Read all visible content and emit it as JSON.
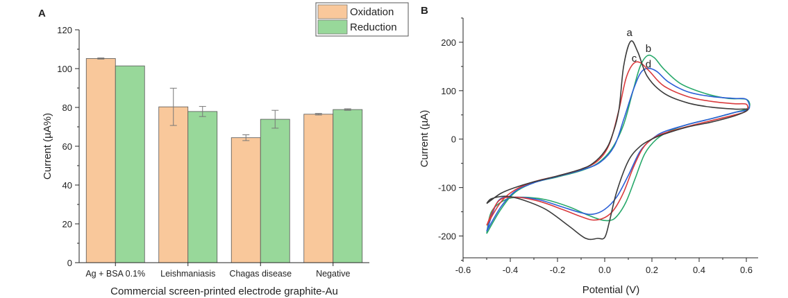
{
  "colors": {
    "oxidation": "#f9c89b",
    "reduction": "#98d89a",
    "curve_a": "#3a3a3a",
    "curve_b": "#27a86a",
    "curve_c": "#d9393c",
    "curve_d": "#2c5fd6"
  },
  "chart_data": [
    {
      "panel": "A",
      "type": "bar",
      "categories": [
        "Ag + BSA 0.1%",
        "Leishmaniasis",
        "Chagas disease",
        "Negative"
      ],
      "series": [
        {
          "name": "Oxidation",
          "values": [
            105.2,
            80.3,
            64.4,
            76.5
          ],
          "errors": [
            0.3,
            9.6,
            1.5,
            0.4
          ]
        },
        {
          "name": "Reduction",
          "values": [
            101.4,
            77.9,
            73.9,
            78.9
          ],
          "errors": [
            0,
            2.6,
            4.6,
            0.4
          ]
        }
      ],
      "xlabel": "Commercial screen-printed electrode graphite-Au",
      "ylabel": "Current (µA%)",
      "ylim": [
        0,
        120
      ],
      "yticks": [
        "0",
        "20",
        "40",
        "60",
        "80",
        "100",
        "120"
      ],
      "legend": "top-right"
    },
    {
      "panel": "B",
      "type": "line",
      "xlabel": "Potential (V)",
      "ylabel": "Current (µA)",
      "xlim": [
        -0.6,
        0.65
      ],
      "ylim": [
        -245,
        250
      ],
      "xticks": [
        "-0.6",
        "-0.4",
        "-0.2",
        "0.0",
        "0.2",
        "0.4",
        "0.6"
      ],
      "yticks": [
        "-200",
        "-100",
        "0",
        "100",
        "200"
      ],
      "series": [
        {
          "name": "a",
          "x": [
            -0.5,
            -0.44,
            -0.38,
            -0.3,
            -0.2,
            -0.1,
            -0.05,
            0.0,
            0.03,
            0.06,
            0.08,
            0.11,
            0.14,
            0.18,
            0.25,
            0.35,
            0.45,
            0.55,
            0.6,
            0.6,
            0.55,
            0.45,
            0.35,
            0.25,
            0.2,
            0.15,
            0.1,
            0.05,
            0.02,
            0.0,
            -0.03,
            -0.08,
            -0.15,
            -0.25,
            -0.35,
            -0.42,
            -0.48,
            -0.5
          ],
          "y": [
            -133,
            -112,
            -100,
            -88,
            -76,
            -62,
            -50,
            -25,
            5,
            60,
            150,
            202,
            180,
            130,
            95,
            75,
            66,
            62,
            62,
            58,
            48,
            35,
            25,
            10,
            0,
            -15,
            -45,
            -110,
            -170,
            -203,
            -205,
            -205,
            -180,
            -145,
            -125,
            -118,
            -123,
            -133
          ]
        },
        {
          "name": "b",
          "x": [
            -0.5,
            -0.44,
            -0.38,
            -0.3,
            -0.2,
            -0.1,
            -0.03,
            0.03,
            0.08,
            0.12,
            0.15,
            0.18,
            0.21,
            0.25,
            0.32,
            0.42,
            0.52,
            0.6,
            0.61,
            0.55,
            0.45,
            0.35,
            0.28,
            0.22,
            0.17,
            0.13,
            0.09,
            0.05,
            0.02,
            -0.02,
            -0.08,
            -0.15,
            -0.25,
            -0.35,
            -0.42,
            -0.48,
            -0.5
          ],
          "y": [
            -195,
            -145,
            -110,
            -90,
            -78,
            -65,
            -50,
            -20,
            30,
            100,
            150,
            172,
            168,
            145,
            115,
            95,
            84,
            82,
            65,
            55,
            42,
            30,
            18,
            0,
            -30,
            -80,
            -130,
            -160,
            -168,
            -166,
            -155,
            -140,
            -125,
            -120,
            -125,
            -150,
            -195
          ]
        },
        {
          "name": "c",
          "x": [
            -0.5,
            -0.44,
            -0.38,
            -0.3,
            -0.2,
            -0.1,
            -0.03,
            0.02,
            0.06,
            0.09,
            0.12,
            0.15,
            0.19,
            0.25,
            0.35,
            0.45,
            0.55,
            0.6,
            0.6,
            0.55,
            0.45,
            0.35,
            0.25,
            0.2,
            0.16,
            0.12,
            0.08,
            0.04,
            0.0,
            -0.05,
            -0.1,
            -0.18,
            -0.28,
            -0.38,
            -0.45,
            -0.5
          ],
          "y": [
            -178,
            -130,
            -105,
            -88,
            -76,
            -62,
            -45,
            -10,
            60,
            125,
            155,
            158,
            140,
            110,
            88,
            78,
            73,
            72,
            58,
            50,
            38,
            26,
            12,
            0,
            -20,
            -60,
            -110,
            -145,
            -162,
            -167,
            -160,
            -145,
            -128,
            -120,
            -128,
            -178
          ]
        },
        {
          "name": "d",
          "x": [
            -0.5,
            -0.44,
            -0.38,
            -0.3,
            -0.2,
            -0.1,
            -0.02,
            0.04,
            0.08,
            0.12,
            0.15,
            0.18,
            0.22,
            0.27,
            0.35,
            0.45,
            0.55,
            0.6,
            0.61,
            0.55,
            0.45,
            0.35,
            0.25,
            0.2,
            0.15,
            0.1,
            0.05,
            0.0,
            -0.05,
            -0.1,
            -0.18,
            -0.28,
            -0.38,
            -0.45,
            -0.5
          ],
          "y": [
            -190,
            -140,
            -108,
            -90,
            -77,
            -64,
            -48,
            -15,
            40,
            100,
            135,
            146,
            140,
            118,
            98,
            88,
            84,
            82,
            62,
            55,
            42,
            30,
            15,
            0,
            -25,
            -75,
            -120,
            -145,
            -155,
            -152,
            -140,
            -125,
            -120,
            -127,
            -190
          ]
        }
      ],
      "annotations": [
        "a",
        "b",
        "c",
        "d"
      ]
    }
  ],
  "panels": {
    "a_label": "A",
    "b_label": "B"
  }
}
